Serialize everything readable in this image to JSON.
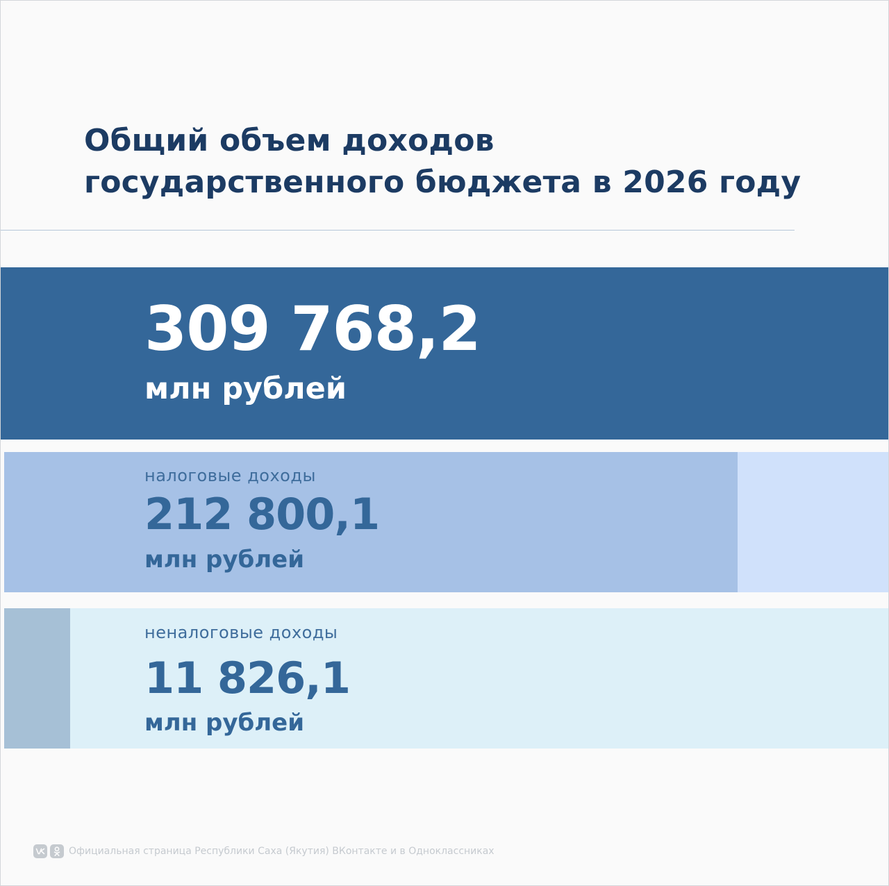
{
  "title": {
    "line1": "Общий объем доходов",
    "line2": "государственного бюджета в 2026 году"
  },
  "total": {
    "value": "309 768,2",
    "unit": "млн рублей"
  },
  "tax_income": {
    "label": "налоговые доходы",
    "value": "212 800,1",
    "unit": "млн рублей"
  },
  "nontax_income": {
    "label": "неналоговые доходы",
    "value": "11 826,1",
    "unit": "млн рублей"
  },
  "footer": {
    "text": "Официальная страница Республики Саха (Якутия) ВКонтакте и в Одноклассниках",
    "icons": [
      "vk-icon",
      "odnoklassniki-icon"
    ]
  },
  "colors": {
    "title": "#1c3b63",
    "total_panel": "#346799",
    "tax_fill": "#a6c1e6",
    "tax_track": "#d0e1fb",
    "nontax_fill": "#a6c0d6",
    "nontax_track": "#ddf0f8"
  }
}
